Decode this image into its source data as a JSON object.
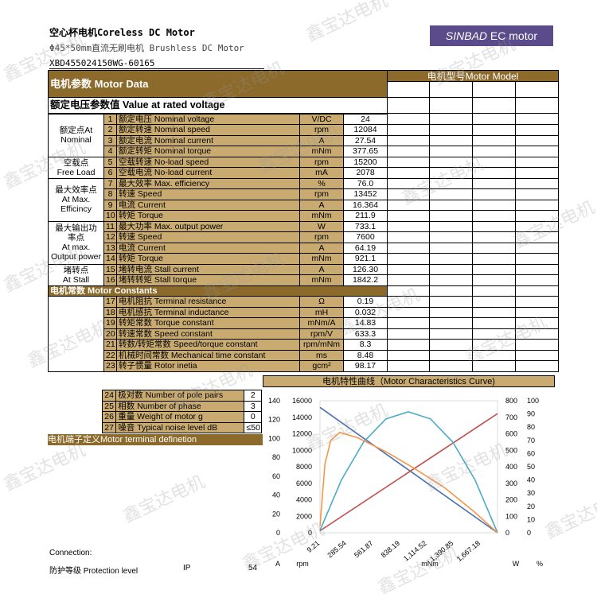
{
  "header": {
    "title": "空心杯电机Coreless DC Motor",
    "subtitle": "Φ45*50mm直流无刷电机 Brushless DC Motor",
    "code": "XBD455024150WG-60165",
    "brand_a": "SINBAD",
    "brand_b": " EC motor"
  },
  "table": {
    "title": "电机参数 Motor Data",
    "model_label": "电机型号Motor Model",
    "rated_title": "额定电压参数值 Value at rated voltage",
    "groups": {
      "g1a": "额定点At",
      "g1b": "Nominal",
      "g2a": "空载点",
      "g2b": "Free Load",
      "g3a": "最大效率点",
      "g3b": "At Max.",
      "g3c": "Efficincy",
      "g4a": "最大输出功",
      "g4b": "率点",
      "g4c": "At max.",
      "g4d": "Output power",
      "g5a": "堵转点",
      "g5b": "At Stall"
    },
    "rows": [
      {
        "no": "1",
        "name": "额定电压 Nominal voltage",
        "unit": "V/DC",
        "value": "24"
      },
      {
        "no": "2",
        "name": "额定转速 Nominal speed",
        "unit": "rpm",
        "value": "12084"
      },
      {
        "no": "3",
        "name": "额定电流 Nominal current",
        "unit": "A",
        "value": "27.54"
      },
      {
        "no": "4",
        "name": "额定转矩 Nominal torque",
        "unit": "mNm",
        "value": "377.65"
      },
      {
        "no": "5",
        "name": "空载转速 No-load speed",
        "unit": "rpm",
        "value": "15200"
      },
      {
        "no": "6",
        "name": "空载电流 No-load current",
        "unit": "mA",
        "value": "2078"
      },
      {
        "no": "7",
        "name": "最大效率 Max. efficiency",
        "unit": "%",
        "value": "76.0"
      },
      {
        "no": "8",
        "name": "转速    Speed",
        "unit": "rpm",
        "value": "13452"
      },
      {
        "no": "9",
        "name": "电流    Current",
        "unit": "A",
        "value": "16.364"
      },
      {
        "no": "10",
        "name": "转矩    Torque",
        "unit": "mNm",
        "value": "211.9"
      },
      {
        "no": "11",
        "name": "最大功率 Max. output power",
        "unit": "W",
        "value": "733.1"
      },
      {
        "no": "12",
        "name": "转速    Speed",
        "unit": "rpm",
        "value": "7600"
      },
      {
        "no": "13",
        "name": "电流    Current",
        "unit": "A",
        "value": "64.19"
      },
      {
        "no": "14",
        "name": "转矩    Torque",
        "unit": "mNm",
        "value": "921.1"
      },
      {
        "no": "15",
        "name": "堵转电流 Stall current",
        "unit": "A",
        "value": "126.30"
      },
      {
        "no": "16",
        "name": "堵转转矩 Stall torque",
        "unit": "mNm",
        "value": "1842.2"
      }
    ],
    "constants_title": "电机常数 Motor Constants",
    "constants": [
      {
        "no": "17",
        "name": "电机阻抗 Terminal resistance",
        "unit": "Ω",
        "value": "0.19"
      },
      {
        "no": "18",
        "name": "电机感抗 Terminal inductance",
        "unit": "mH",
        "value": "0.032"
      },
      {
        "no": "19",
        "name": "转矩常数 Torque constant",
        "unit": "mNm/A",
        "value": "14.83"
      },
      {
        "no": "20",
        "name": "转速常数 Speed constant",
        "unit": "rpm/V",
        "value": "633.3"
      },
      {
        "no": "21",
        "name": "转数/转矩常数 Speed/torque constant",
        "unit": "rpm/mNm",
        "value": "8.3"
      },
      {
        "no": "22",
        "name": "机械时间常数  Mechanical time constant",
        "unit": "ms",
        "value": "8.48"
      },
      {
        "no": "23",
        "name": "转子惯量  Rotor inetia",
        "unit": "gcm²",
        "value": "98.17"
      }
    ],
    "curve_title": "电机特性曲线（Motor Characteristics Curve)",
    "extra": [
      {
        "no": "24",
        "name": "极对数 Number of pole pairs",
        "value": "2"
      },
      {
        "no": "25",
        "name": "相数   Number of phase",
        "value": "3"
      },
      {
        "no": "26",
        "name": "重量   Weight of motor    g",
        "value": "0"
      },
      {
        "no": "27",
        "name": "噪音  Typical noise level dB",
        "value": "≤50"
      }
    ],
    "terminal": "电机端子定义Motor terminal definetion"
  },
  "footer": {
    "connection": "Connection:",
    "protection": "防护等级 Protection level",
    "ip": "IP",
    "ip_value": "54"
  },
  "watermark": "鑫宝达电机",
  "chart_data": {
    "type": "line",
    "x_ticks": [
      "9.21",
      "285.54",
      "561.87",
      "838.19",
      "1,114.52",
      "1,390.85",
      "1,667.18"
    ],
    "xlabel": "mNm",
    "left1": {
      "label": "rpm",
      "ticks": [
        "0",
        "2000",
        "4000",
        "6000",
        "8000",
        "10000",
        "12000",
        "14000",
        "16000"
      ],
      "ylim": [
        0,
        16000
      ]
    },
    "left2": {
      "label": "A",
      "ticks": [
        "0",
        "20",
        "40",
        "60",
        "80",
        "100",
        "120",
        "140"
      ],
      "ylim": [
        0,
        140
      ]
    },
    "right1": {
      "label": "W",
      "ticks": [
        "0",
        "100",
        "200",
        "300",
        "400",
        "500",
        "600",
        "700",
        "800"
      ],
      "ylim": [
        0,
        800
      ]
    },
    "right2": {
      "label": "%",
      "ticks": [
        "0",
        "10",
        "20",
        "30",
        "40",
        "50",
        "60",
        "70",
        "80",
        "90",
        "100"
      ],
      "ylim": [
        0,
        100
      ]
    },
    "series": [
      {
        "color": "#4a6fb5",
        "axis": "left1",
        "x": [
          9.21,
          1842.2
        ],
        "y": [
          15200,
          0
        ]
      },
      {
        "color": "#c0504d",
        "axis": "left2",
        "x": [
          9.21,
          1842.2
        ],
        "y": [
          2.08,
          126.3
        ]
      },
      {
        "color": "#4aacc6",
        "axis": "right1",
        "x": [
          9.21,
          230,
          460,
          690,
          921,
          1150,
          1380,
          1610,
          1842.2
        ],
        "y": [
          14,
          320,
          550,
          690,
          733,
          690,
          550,
          320,
          0
        ]
      },
      {
        "color": "#f79646",
        "axis": "right2",
        "x": [
          9.21,
          60,
          120,
          211.9,
          400,
          700,
          1000,
          1300,
          1600,
          1842.2
        ],
        "y": [
          5,
          52,
          70,
          76,
          72,
          61,
          48,
          34,
          16,
          0
        ]
      }
    ]
  }
}
